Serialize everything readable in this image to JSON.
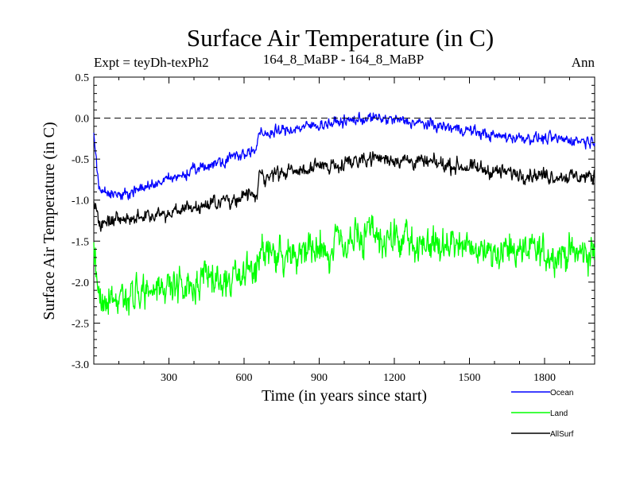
{
  "chart_data": {
    "type": "line",
    "title": "Surface Air Temperature (in C)",
    "subtitle_left": "Expt = teyDh-texPh2",
    "subtitle_center": "164_8_MaBP - 164_8_MaBP",
    "subtitle_right": "Ann",
    "xlabel": "Time (in years since start)",
    "ylabel": "Surface Air Temperature (in C)",
    "xlim": [
      0,
      2000
    ],
    "ylim": [
      -3.0,
      0.5
    ],
    "xticks": [
      300,
      600,
      900,
      1200,
      1500,
      1800
    ],
    "xtick_labels": [
      "300",
      "600",
      "900",
      "1200",
      "1500",
      "1800"
    ],
    "yticks": [
      -3.0,
      -2.5,
      -2.0,
      -1.5,
      -1.0,
      -0.5,
      0.0,
      0.5
    ],
    "ytick_labels": [
      "-3.0",
      "-2.5",
      "-2.0",
      "-1.5",
      "-1.0",
      "-0.5",
      "0.0",
      "0.5"
    ],
    "reference_line": {
      "y": 0.0,
      "style": "dashed"
    },
    "legend_position": "bottom-right",
    "series": [
      {
        "name": "Ocean",
        "color": "#0000ff",
        "noise": 0.07,
        "trend": [
          [
            0,
            -0.2
          ],
          [
            20,
            -0.85
          ],
          [
            100,
            -0.95
          ],
          [
            300,
            -0.75
          ],
          [
            600,
            -0.42
          ],
          [
            650,
            -0.4
          ],
          [
            660,
            -0.2
          ],
          [
            900,
            -0.08
          ],
          [
            1100,
            0.0
          ],
          [
            1200,
            -0.02
          ],
          [
            1500,
            -0.15
          ],
          [
            1600,
            -0.22
          ],
          [
            1800,
            -0.25
          ],
          [
            2000,
            -0.28
          ]
        ]
      },
      {
        "name": "Land",
        "color": "#00ff00",
        "noise": 0.22,
        "trend": [
          [
            0,
            -1.5
          ],
          [
            20,
            -2.25
          ],
          [
            100,
            -2.2
          ],
          [
            300,
            -2.05
          ],
          [
            600,
            -1.9
          ],
          [
            650,
            -1.85
          ],
          [
            660,
            -1.65
          ],
          [
            900,
            -1.6
          ],
          [
            1100,
            -1.45
          ],
          [
            1200,
            -1.5
          ],
          [
            1500,
            -1.58
          ],
          [
            1600,
            -1.6
          ],
          [
            1800,
            -1.65
          ],
          [
            2000,
            -1.65
          ]
        ]
      },
      {
        "name": "AllSurf",
        "color": "#000000",
        "noise": 0.09,
        "trend": [
          [
            0,
            -1.0
          ],
          [
            20,
            -1.3
          ],
          [
            100,
            -1.25
          ],
          [
            300,
            -1.15
          ],
          [
            600,
            -0.95
          ],
          [
            650,
            -0.95
          ],
          [
            660,
            -0.72
          ],
          [
            900,
            -0.6
          ],
          [
            1100,
            -0.48
          ],
          [
            1200,
            -0.5
          ],
          [
            1500,
            -0.6
          ],
          [
            1600,
            -0.65
          ],
          [
            1800,
            -0.7
          ],
          [
            2000,
            -0.72
          ]
        ]
      }
    ]
  }
}
